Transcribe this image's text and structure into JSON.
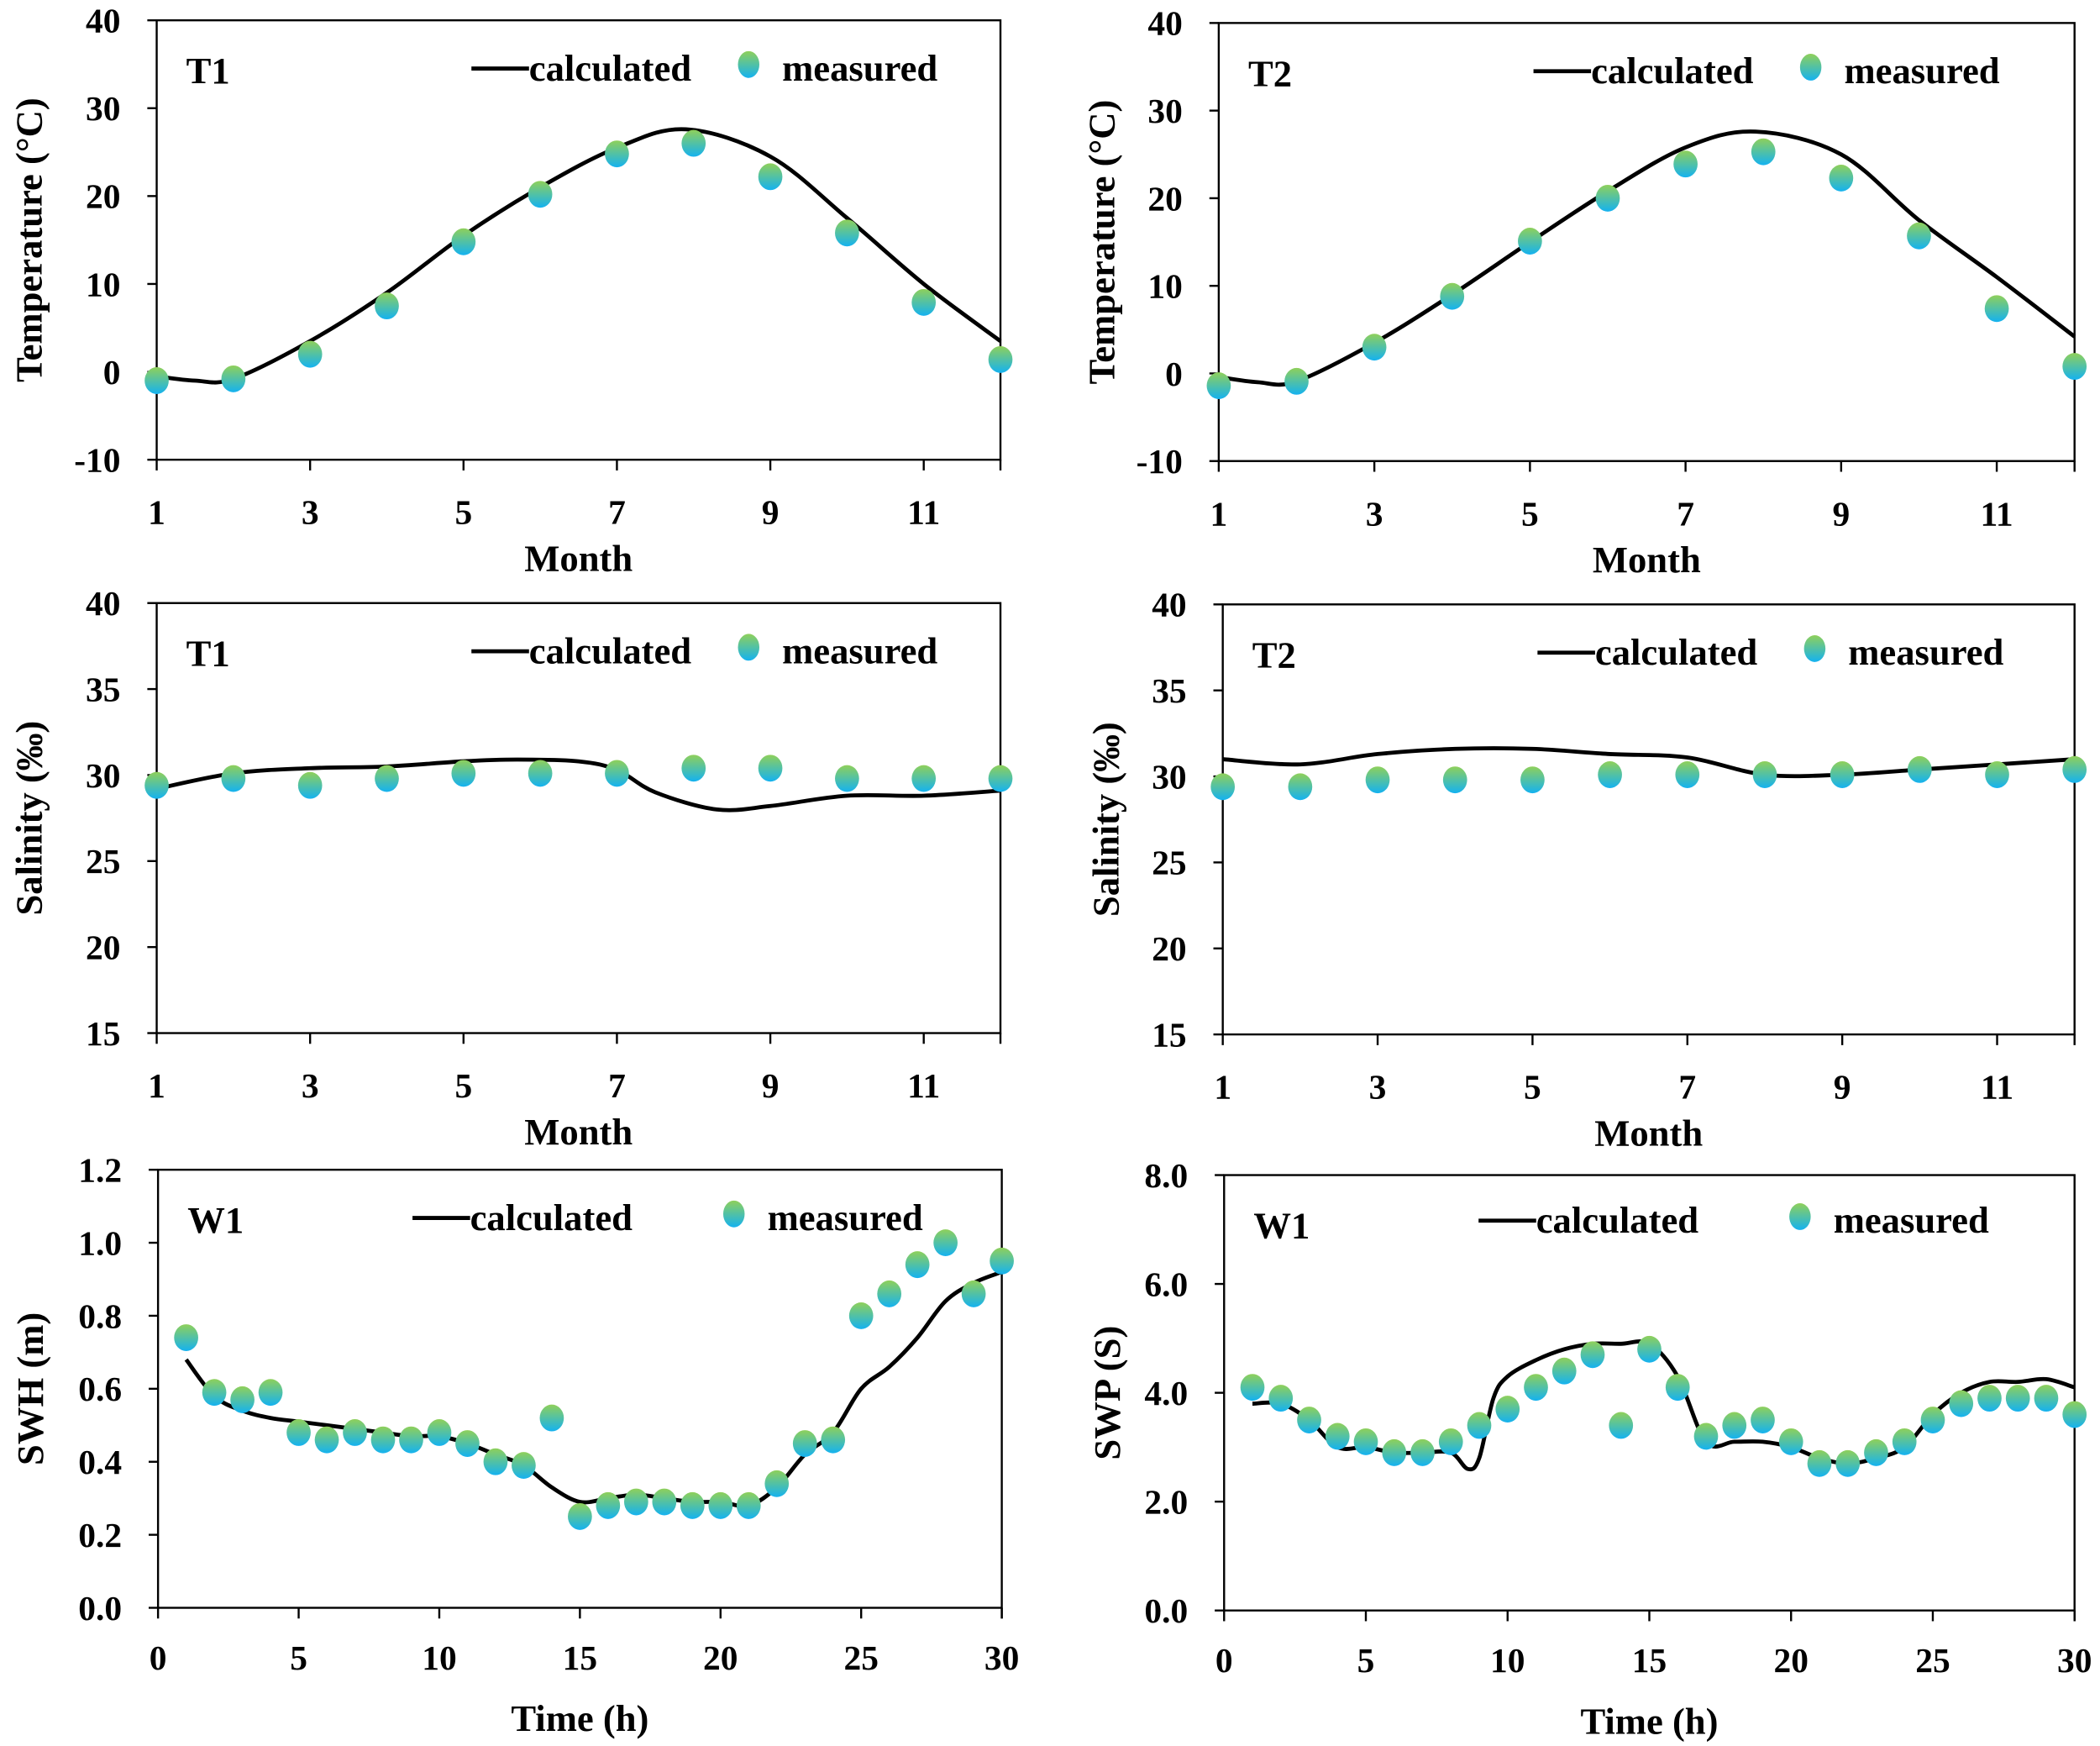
{
  "colors": {
    "marker_top": "#8fd05a",
    "marker_bottom": "#14b2f0",
    "line": "#000000"
  },
  "chart_data": [
    {
      "type": "line",
      "panel": "T1",
      "title": "T1",
      "xlabel": "Month",
      "ylabel": "Temperature (°C)",
      "xlim": [
        1,
        12
      ],
      "ylim": [
        -10,
        40
      ],
      "xticks": [
        1,
        3,
        5,
        7,
        9,
        11
      ],
      "xtick_labels": [
        "1",
        "3",
        "5",
        "7",
        "9",
        "11"
      ],
      "yticks": [
        -10,
        0,
        10,
        20,
        30,
        40
      ],
      "ytick_labels": [
        "-10",
        "0",
        "10",
        "20",
        "30",
        "40"
      ],
      "legend": {
        "line": "calculated",
        "marker": "measured",
        "placement": "top-right"
      },
      "calculated": {
        "x": [
          1,
          1.5,
          2,
          3,
          4,
          5,
          6,
          7,
          7.9,
          9,
          10,
          11,
          12
        ],
        "y": [
          -0.5,
          -1,
          -0.8,
          3.5,
          9,
          15.5,
          21,
          25.5,
          27.6,
          24.5,
          17.5,
          10,
          3.5
        ]
      },
      "measured": {
        "x": [
          1,
          2,
          3,
          4,
          5,
          6,
          7,
          8,
          9,
          10,
          11,
          12
        ],
        "y": [
          -1,
          -0.8,
          2,
          7.5,
          14.8,
          20.2,
          24.8,
          26,
          22.2,
          15.8,
          7.9,
          1.4
        ]
      }
    },
    {
      "type": "line",
      "panel": "T2",
      "title": "T2",
      "xlabel": "Month",
      "ylabel": "Temperature (°C)",
      "xlim": [
        1,
        12
      ],
      "ylim": [
        -10,
        40
      ],
      "xticks": [
        1,
        3,
        5,
        7,
        9,
        11
      ],
      "xtick_labels": [
        "1",
        "3",
        "5",
        "7",
        "9",
        "11"
      ],
      "yticks": [
        -10,
        0,
        10,
        20,
        30,
        40
      ],
      "ytick_labels": [
        "-10",
        "0",
        "10",
        "20",
        "30",
        "40"
      ],
      "legend": {
        "line": "calculated",
        "marker": "measured",
        "placement": "top-right"
      },
      "calculated": {
        "x": [
          1,
          1.5,
          2,
          3,
          4,
          5,
          6,
          7,
          7.9,
          9,
          10,
          11,
          12
        ],
        "y": [
          -0.4,
          -1,
          -0.9,
          3.5,
          9,
          15,
          20.8,
          25.8,
          27.6,
          25,
          17.5,
          11,
          4.2
        ]
      },
      "measured": {
        "x": [
          1,
          2,
          3,
          4,
          5,
          6,
          7,
          8,
          9,
          10,
          11,
          12
        ],
        "y": [
          -1.4,
          -0.9,
          3,
          8.8,
          15.1,
          20,
          23.9,
          25.3,
          22.3,
          15.7,
          7.4,
          0.8
        ]
      }
    },
    {
      "type": "line",
      "panel": "T1",
      "title": "T1",
      "xlabel": "Month",
      "ylabel": "Salinity (‰)",
      "xlim": [
        1,
        12
      ],
      "ylim": [
        15,
        40
      ],
      "xticks": [
        1,
        3,
        5,
        7,
        9,
        11
      ],
      "xtick_labels": [
        "1",
        "3",
        "5",
        "7",
        "9",
        "11"
      ],
      "yticks": [
        15,
        20,
        25,
        30,
        35,
        40
      ],
      "ytick_labels": [
        "15",
        "20",
        "25",
        "30",
        "35",
        "40"
      ],
      "legend": {
        "line": "calculated",
        "marker": "measured",
        "placement": "top-right"
      },
      "calculated": {
        "x": [
          1,
          2,
          3,
          4,
          5,
          5.7,
          6.5,
          7,
          7.5,
          8.3,
          9,
          10,
          11,
          12
        ],
        "y": [
          29.2,
          30.1,
          30.4,
          30.5,
          30.8,
          30.9,
          30.8,
          30.3,
          29,
          28,
          28.2,
          28.8,
          28.8,
          29.1
        ]
      },
      "measured": {
        "x": [
          1,
          2,
          3,
          4,
          5,
          6,
          7,
          8,
          9,
          10,
          11,
          12
        ],
        "y": [
          29.4,
          29.8,
          29.4,
          29.8,
          30.1,
          30.1,
          30.1,
          30.4,
          30.4,
          29.8,
          29.8,
          29.8
        ]
      }
    },
    {
      "type": "line",
      "panel": "T2",
      "title": "T2",
      "xlabel": "Month",
      "ylabel": "Salinity (‰)",
      "xlim": [
        1,
        12
      ],
      "ylim": [
        15,
        40
      ],
      "xticks": [
        1,
        3,
        5,
        7,
        9,
        11
      ],
      "xtick_labels": [
        "1",
        "3",
        "5",
        "7",
        "9",
        "11"
      ],
      "yticks": [
        15,
        20,
        25,
        30,
        35,
        40
      ],
      "ytick_labels": [
        "15",
        "20",
        "25",
        "30",
        "35",
        "40"
      ],
      "legend": {
        "line": "calculated",
        "marker": "measured",
        "placement": "top-right"
      },
      "calculated": {
        "x": [
          1,
          2,
          3,
          4,
          5,
          6,
          7,
          8,
          9,
          10,
          11,
          12
        ],
        "y": [
          31,
          30.7,
          31.3,
          31.6,
          31.6,
          31.3,
          31.1,
          30.1,
          30.1,
          30.4,
          30.7,
          31
        ]
      },
      "measured": {
        "x": [
          1,
          2,
          3,
          4,
          5,
          6,
          7,
          8,
          9,
          10,
          11,
          12
        ],
        "y": [
          29.4,
          29.4,
          29.8,
          29.8,
          29.8,
          30.1,
          30.1,
          30.1,
          30.1,
          30.4,
          30.1,
          30.4
        ]
      }
    },
    {
      "type": "line",
      "panel": "W1",
      "title": "W1",
      "xlabel": "Time (h)",
      "ylabel": "SWH (m)",
      "xlim": [
        0,
        30
      ],
      "ylim": [
        0,
        1.2
      ],
      "xticks": [
        0,
        5,
        10,
        15,
        20,
        25,
        30
      ],
      "xtick_labels": [
        "0",
        "5",
        "10",
        "15",
        "20",
        "25",
        "30"
      ],
      "yticks": [
        0,
        0.2,
        0.4,
        0.6,
        0.8,
        1.0,
        1.2
      ],
      "ytick_labels": [
        "0.0",
        "0.2",
        "0.4",
        "0.6",
        "0.8",
        "1.0",
        "1.2"
      ],
      "legend": {
        "line": "calculated",
        "marker": "measured",
        "placement": "top-right"
      },
      "calculated": {
        "x": [
          1,
          2,
          3,
          4,
          5,
          6,
          7,
          8,
          9,
          10,
          11,
          12,
          13,
          14,
          15,
          16,
          17,
          18,
          19,
          20,
          21,
          22,
          23,
          24,
          25,
          26,
          27,
          28,
          29,
          30
        ],
        "y": [
          0.68,
          0.58,
          0.54,
          0.52,
          0.51,
          0.5,
          0.49,
          0.48,
          0.47,
          0.47,
          0.45,
          0.42,
          0.39,
          0.33,
          0.29,
          0.3,
          0.31,
          0.3,
          0.29,
          0.29,
          0.28,
          0.33,
          0.42,
          0.48,
          0.6,
          0.66,
          0.74,
          0.84,
          0.89,
          0.92
        ]
      },
      "measured": {
        "x": [
          1,
          2,
          3,
          4,
          5,
          6,
          7,
          8,
          9,
          10,
          11,
          12,
          13,
          14,
          15,
          16,
          17,
          18,
          19,
          20,
          21,
          22,
          23,
          24,
          25,
          26,
          27,
          28,
          29,
          30
        ],
        "y": [
          0.74,
          0.59,
          0.57,
          0.59,
          0.48,
          0.46,
          0.48,
          0.46,
          0.46,
          0.48,
          0.45,
          0.4,
          0.39,
          0.52,
          0.25,
          0.28,
          0.29,
          0.29,
          0.28,
          0.28,
          0.28,
          0.34,
          0.45,
          0.46,
          0.8,
          0.86,
          0.94,
          1.0,
          0.86,
          0.95
        ]
      }
    },
    {
      "type": "line",
      "panel": "W1",
      "title": "W1",
      "xlabel": "Time (h)",
      "ylabel": "SWP (S)",
      "xlim": [
        0,
        30
      ],
      "ylim": [
        0,
        8
      ],
      "xticks": [
        0,
        5,
        10,
        15,
        20,
        25,
        30
      ],
      "xtick_labels": [
        "0",
        "5",
        "10",
        "15",
        "20",
        "25",
        "30"
      ],
      "yticks": [
        0,
        2,
        4,
        6,
        8
      ],
      "ytick_labels": [
        "0.0",
        "2.0",
        "4.0",
        "6.0",
        "8.0"
      ],
      "legend": {
        "line": "calculated",
        "marker": "measured",
        "placement": "top-right"
      },
      "calculated": {
        "x": [
          1,
          2,
          3,
          4,
          5,
          6,
          7,
          8,
          8.6,
          9,
          9.5,
          10,
          11,
          12,
          13,
          14,
          15,
          16,
          17,
          18,
          19,
          20,
          21,
          22,
          23,
          24,
          25,
          26,
          27,
          28,
          29,
          30
        ],
        "y": [
          3.8,
          3.8,
          3.5,
          3.0,
          3.0,
          2.9,
          2.9,
          2.9,
          2.6,
          2.8,
          3.9,
          4.3,
          4.6,
          4.8,
          4.9,
          4.9,
          4.9,
          4.3,
          3.1,
          3.1,
          3.1,
          3.0,
          2.8,
          2.7,
          2.8,
          3.0,
          3.6,
          4.0,
          4.2,
          4.2,
          4.25,
          4.1
        ]
      },
      "measured": {
        "x": [
          1,
          2,
          3,
          4,
          5,
          6,
          7,
          8,
          9,
          10,
          11,
          12,
          13,
          14,
          15,
          16,
          17,
          18,
          19,
          20,
          21,
          22,
          23,
          24,
          25,
          26,
          27,
          28,
          29,
          30
        ],
        "y": [
          4.1,
          3.9,
          3.5,
          3.2,
          3.1,
          2.9,
          2.9,
          3.1,
          3.4,
          3.7,
          4.1,
          4.4,
          4.7,
          3.4,
          4.8,
          4.1,
          3.2,
          3.4,
          3.5,
          3.1,
          2.7,
          2.7,
          2.9,
          3.1,
          3.5,
          3.8,
          3.9,
          3.9,
          3.9,
          3.6
        ]
      }
    }
  ]
}
